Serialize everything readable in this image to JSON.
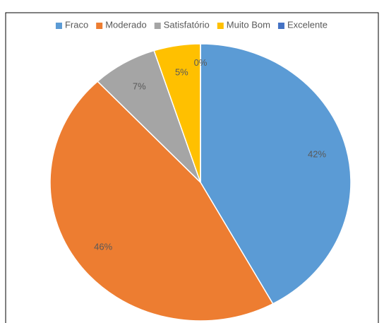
{
  "chart_data": {
    "type": "pie",
    "categories": [
      "Fraco",
      "Moderado",
      "Satisfatório",
      "Muito Bom",
      "Excelente"
    ],
    "values": [
      42,
      46,
      7,
      5,
      0
    ],
    "value_labels": [
      "42%",
      "46%",
      "7%",
      "5%",
      "0%"
    ],
    "colors": [
      "#5b9bd5",
      "#ed7d31",
      "#a5a5a5",
      "#ffc000",
      "#4472c4"
    ],
    "legend": "top"
  }
}
